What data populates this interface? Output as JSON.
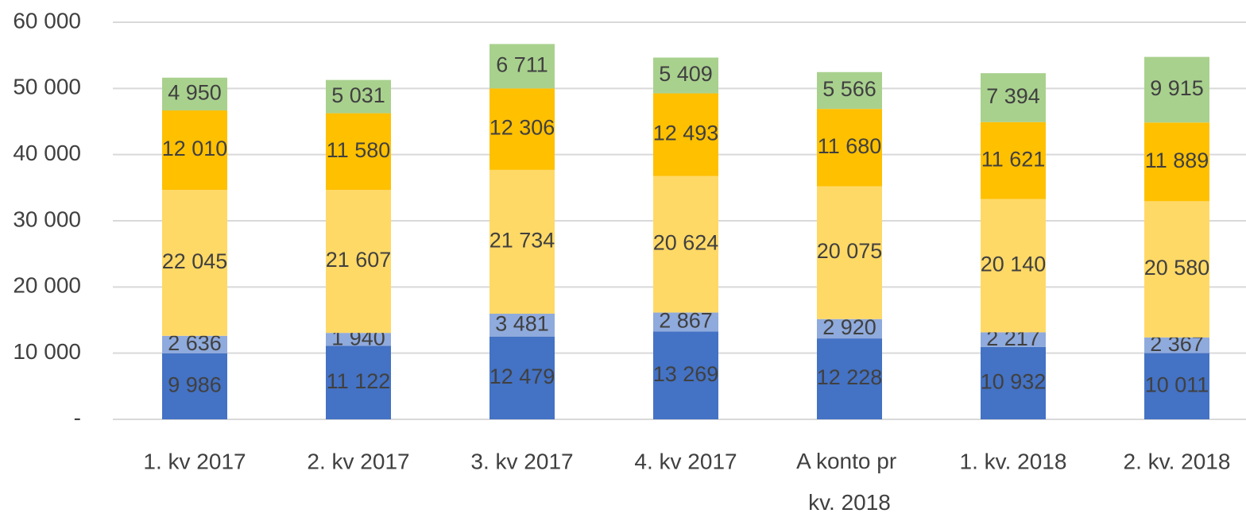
{
  "chart_data": {
    "type": "stacked_bar",
    "categories": [
      "1. kv 2017",
      "2. kv 2017",
      "3. kv 2017",
      "4. kv 2017",
      "A konto pr kv. 2018",
      "1. kv. 2018",
      "2. kv. 2018"
    ],
    "series": [
      {
        "color": "#4472c4",
        "values": [
          9986,
          11122,
          12479,
          13269,
          12228,
          10932,
          10011
        ],
        "value_labels": [
          "9 986",
          "11 122",
          "12 479",
          "13 269",
          "12 228",
          "10 932",
          "10 011"
        ]
      },
      {
        "color": "#8faadc",
        "values": [
          2636,
          1940,
          3481,
          2867,
          2920,
          2217,
          2367
        ],
        "value_labels": [
          "2 636",
          "1 940",
          "3 481",
          "2 867",
          "2 920",
          "2 217",
          "2 367"
        ]
      },
      {
        "color": "#ffd966",
        "values": [
          22045,
          21607,
          21734,
          20624,
          20075,
          20140,
          20580
        ],
        "value_labels": [
          "22 045",
          "21 607",
          "21 734",
          "20 624",
          "20 075",
          "20 140",
          "20 580"
        ]
      },
      {
        "color": "#ffc000",
        "values": [
          12010,
          11580,
          12306,
          12493,
          11680,
          11621,
          11889
        ],
        "value_labels": [
          "12 010",
          "11 580",
          "12 306",
          "12 493",
          "11 680",
          "11 621",
          "11 889"
        ]
      },
      {
        "color": "#a9d18e",
        "values": [
          4950,
          5031,
          6711,
          5409,
          5566,
          7394,
          9915
        ],
        "value_labels": [
          "4 950",
          "5 031",
          "6 711",
          "5 409",
          "5 566",
          "7 394",
          "9 915"
        ]
      }
    ],
    "ylim": [
      0,
      60000
    ],
    "yticks": [
      {
        "value": 0,
        "label": "-"
      },
      {
        "value": 10000,
        "label": "10 000"
      },
      {
        "value": 20000,
        "label": "20 000"
      },
      {
        "value": 30000,
        "label": "30 000"
      },
      {
        "value": 40000,
        "label": "40 000"
      },
      {
        "value": 50000,
        "label": "50 000"
      },
      {
        "value": 60000,
        "label": "60 000"
      }
    ],
    "grid": true
  }
}
